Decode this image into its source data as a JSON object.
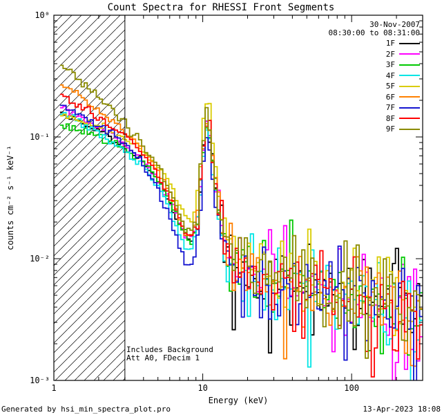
{
  "chart_data": {
    "type": "line",
    "title": "Count Spectra for RHESSI Front Segments",
    "date": "30-Nov-2007",
    "time_range": "08:30:00 to 08:31:00",
    "xlabel": "Energy (keV)",
    "ylabel": "counts cm⁻² s⁻¹ keV⁻¹",
    "xscale": "log",
    "yscale": "log",
    "xlim": [
      1,
      300
    ],
    "ylim": [
      0.001,
      1
    ],
    "grid": false,
    "legend_position": "top-right",
    "x_ticks": [
      {
        "value": 1,
        "label": "1"
      },
      {
        "value": 10,
        "label": "10"
      },
      {
        "value": 100,
        "label": "100"
      }
    ],
    "y_ticks": [
      {
        "value": 1,
        "label": "10⁰"
      },
      {
        "value": 0.1,
        "label": "10⁻¹"
      },
      {
        "value": 0.01,
        "label": "10⁻²"
      },
      {
        "value": 0.001,
        "label": "10⁻³"
      }
    ],
    "hatch_region": {
      "x_min": 1,
      "x_max": 3
    },
    "annotations": [
      "Includes Background",
      "Att A0, FDecim 1"
    ],
    "x": [
      1.1,
      1.3,
      1.6,
      2.0,
      2.5,
      3.0,
      3.5,
      4.0,
      5.0,
      6.0,
      7.0,
      7.7,
      8.5,
      9.3,
      10.0,
      10.6,
      11.3,
      12.0,
      13.0,
      14.5,
      17.0,
      20.0,
      25.0,
      32.0,
      40.0,
      55.0,
      75.0,
      100.0,
      140.0,
      200.0,
      300.0
    ],
    "series": [
      {
        "name": "1F",
        "color": "#000000",
        "y": [
          0.16,
          0.148,
          0.128,
          0.11,
          0.096,
          0.084,
          0.071,
          0.061,
          0.044,
          0.029,
          0.018,
          0.0145,
          0.0135,
          0.021,
          0.072,
          0.12,
          0.092,
          0.043,
          0.021,
          0.0115,
          0.0082,
          0.0073,
          0.0068,
          0.0063,
          0.006,
          0.0056,
          0.0052,
          0.0047,
          0.0042,
          0.0036,
          0.0029
        ]
      },
      {
        "name": "2F",
        "color": "#ff00ff",
        "y": [
          0.175,
          0.16,
          0.138,
          0.118,
          0.102,
          0.088,
          0.074,
          0.064,
          0.046,
          0.031,
          0.02,
          0.0155,
          0.0145,
          0.023,
          0.078,
          0.128,
          0.098,
          0.046,
          0.023,
          0.0125,
          0.0088,
          0.0077,
          0.0071,
          0.0066,
          0.0062,
          0.0058,
          0.0054,
          0.0048,
          0.0043,
          0.0037,
          0.003
        ]
      },
      {
        "name": "3F",
        "color": "#00c800",
        "y": [
          0.125,
          0.12,
          0.112,
          0.1,
          0.09,
          0.08,
          0.069,
          0.06,
          0.044,
          0.03,
          0.019,
          0.015,
          0.014,
          0.022,
          0.075,
          0.122,
          0.094,
          0.044,
          0.022,
          0.012,
          0.0085,
          0.0075,
          0.0069,
          0.0064,
          0.0061,
          0.0057,
          0.0053,
          0.0047,
          0.0042,
          0.0036,
          0.0029
        ]
      },
      {
        "name": "4F",
        "color": "#00e5e5",
        "y": [
          0.155,
          0.143,
          0.124,
          0.106,
          0.092,
          0.079,
          0.066,
          0.056,
          0.039,
          0.025,
          0.0155,
          0.0125,
          0.012,
          0.019,
          0.068,
          0.112,
          0.086,
          0.04,
          0.019,
          0.0105,
          0.0078,
          0.007,
          0.0065,
          0.0061,
          0.0058,
          0.0055,
          0.0051,
          0.0046,
          0.0041,
          0.0034,
          0.0028
        ]
      },
      {
        "name": "5F",
        "color": "#d9cc00",
        "y": [
          0.15,
          0.145,
          0.135,
          0.122,
          0.11,
          0.098,
          0.086,
          0.076,
          0.058,
          0.041,
          0.028,
          0.022,
          0.02,
          0.032,
          0.11,
          0.2,
          0.15,
          0.065,
          0.031,
          0.016,
          0.0105,
          0.009,
          0.0082,
          0.0075,
          0.0071,
          0.0066,
          0.0061,
          0.0055,
          0.0049,
          0.0042,
          0.0034
        ]
      },
      {
        "name": "6F",
        "color": "#ff8000",
        "y": [
          0.27,
          0.245,
          0.205,
          0.165,
          0.135,
          0.11,
          0.09,
          0.076,
          0.053,
          0.034,
          0.021,
          0.0165,
          0.0155,
          0.025,
          0.085,
          0.138,
          0.105,
          0.049,
          0.024,
          0.013,
          0.009,
          0.0079,
          0.0072,
          0.0067,
          0.0063,
          0.0059,
          0.0055,
          0.0049,
          0.0044,
          0.0038,
          0.003
        ]
      },
      {
        "name": "7F",
        "color": "#1515d0",
        "y": [
          0.18,
          0.168,
          0.146,
          0.124,
          0.105,
          0.088,
          0.072,
          0.059,
          0.038,
          0.022,
          0.0125,
          0.009,
          0.0088,
          0.014,
          0.06,
          0.105,
          0.08,
          0.036,
          0.017,
          0.0095,
          0.0074,
          0.0067,
          0.0063,
          0.0059,
          0.0056,
          0.0053,
          0.005,
          0.0045,
          0.004,
          0.0034,
          0.0027
        ]
      },
      {
        "name": "8F",
        "color": "#ff0000",
        "y": [
          0.22,
          0.2,
          0.172,
          0.145,
          0.122,
          0.102,
          0.085,
          0.072,
          0.05,
          0.033,
          0.021,
          0.016,
          0.015,
          0.024,
          0.082,
          0.132,
          0.1,
          0.047,
          0.023,
          0.0128,
          0.0089,
          0.0078,
          0.0071,
          0.0066,
          0.0062,
          0.0058,
          0.0054,
          0.0048,
          0.0043,
          0.0037,
          0.003
        ]
      },
      {
        "name": "9F",
        "color": "#8b8b00",
        "y": [
          0.38,
          0.345,
          0.275,
          0.21,
          0.165,
          0.13,
          0.103,
          0.085,
          0.058,
          0.037,
          0.023,
          0.0175,
          0.0165,
          0.027,
          0.09,
          0.148,
          0.112,
          0.052,
          0.025,
          0.0135,
          0.0092,
          0.0081,
          0.0074,
          0.0068,
          0.0064,
          0.006,
          0.0056,
          0.005,
          0.0045,
          0.0039,
          0.0031
        ]
      }
    ]
  },
  "footer": {
    "left": "Generated by hsi_min_spectra_plot.pro",
    "right": "13-Apr-2023 18:08"
  }
}
